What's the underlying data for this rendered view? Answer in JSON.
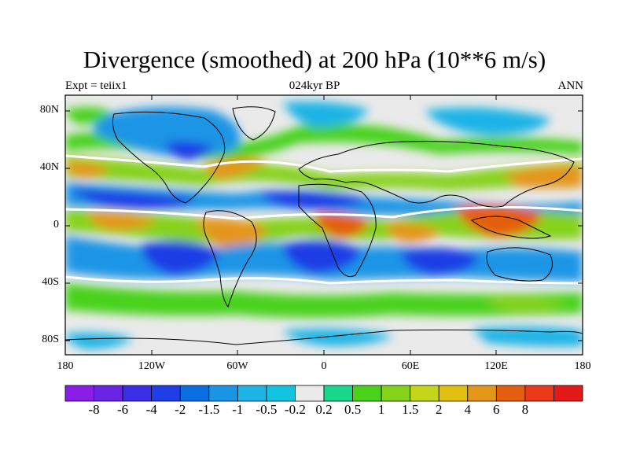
{
  "header": {
    "title": "Divergence (smoothed) at 200 hPa (10**6 m/s)",
    "left_label": "Expt = teiix1",
    "center_label": "024kyr BP",
    "right_label": "ANN"
  },
  "axes": {
    "lat_ticks": [
      "80N",
      "40N",
      "0",
      "40S",
      "80S"
    ],
    "lon_ticks": [
      "180",
      "120W",
      "60W",
      "0",
      "60E",
      "120E",
      "180"
    ]
  },
  "colorbar": {
    "colors": [
      "#8a1ee6",
      "#6a24e6",
      "#3a2ee6",
      "#1f3ee6",
      "#0a6ee0",
      "#1a95e6",
      "#1fb4e6",
      "#12c4e0",
      "#eaeaea",
      "#1ad68a",
      "#4ad21a",
      "#86d21a",
      "#c4d61a",
      "#e2c00e",
      "#e4961a",
      "#e45e10",
      "#ea3a1a",
      "#e41a1a"
    ],
    "labels": [
      "-8",
      "-6",
      "-4",
      "-2",
      "-1.5",
      "-1",
      "-0.5",
      "-0.2",
      "0.2",
      "0.5",
      "1",
      "1.5",
      "2",
      "4",
      "6",
      "8"
    ]
  }
}
